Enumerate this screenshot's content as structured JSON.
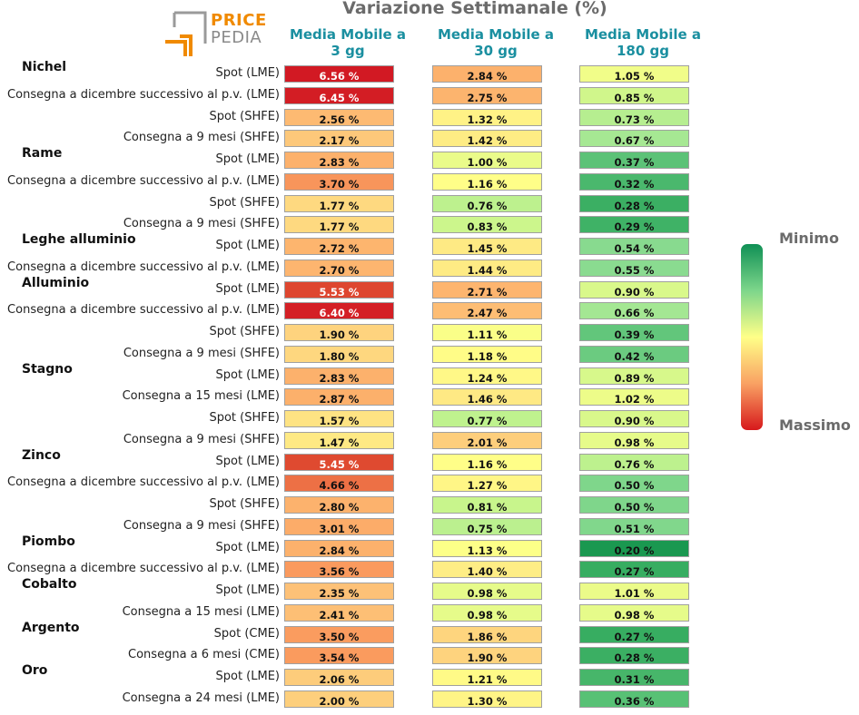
{
  "header": {
    "title": "Variazione Settimanale (%)"
  },
  "logo": {
    "line1": "PRICE",
    "line2": "PEDIA"
  },
  "legend": {
    "min_label": "Minimo",
    "max_label": "Massimo"
  },
  "colors": {
    "header_teal": "#1a8fa0",
    "logo_orange": "#f08a00",
    "logo_gray": "#8a8a8a"
  },
  "chart_data": {
    "type": "table",
    "title": "Variazione Settimanale (%)",
    "unit_suffix": " %",
    "columns": [
      "Media Mobile a\n3 gg",
      "Media Mobile a\n30 gg",
      "Media Mobile a\n180 gg"
    ],
    "colorscale": "RdYlGn (red = Massimo, green = Minimo)",
    "groups": [
      {
        "name": "Nichel",
        "rows": [
          {
            "label": "Spot (LME)",
            "values": [
              6.56,
              2.84,
              1.05
            ]
          },
          {
            "label": "Consegna a dicembre successivo al p.v. (LME)",
            "values": [
              6.45,
              2.75,
              0.85
            ]
          },
          {
            "label": "Spot (SHFE)",
            "values": [
              2.56,
              1.32,
              0.73
            ]
          },
          {
            "label": "Consegna a 9 mesi (SHFE)",
            "values": [
              2.17,
              1.42,
              0.67
            ]
          }
        ]
      },
      {
        "name": "Rame",
        "rows": [
          {
            "label": "Spot (LME)",
            "values": [
              2.83,
              1.0,
              0.37
            ]
          },
          {
            "label": "Consegna a dicembre successivo al p.v. (LME)",
            "values": [
              3.7,
              1.16,
              0.32
            ]
          },
          {
            "label": "Spot (SHFE)",
            "values": [
              1.77,
              0.76,
              0.28
            ]
          },
          {
            "label": "Consegna a 9 mesi (SHFE)",
            "values": [
              1.77,
              0.83,
              0.29
            ]
          }
        ]
      },
      {
        "name": "Leghe alluminio",
        "rows": [
          {
            "label": "Spot (LME)",
            "values": [
              2.72,
              1.45,
              0.54
            ]
          },
          {
            "label": "Consegna a dicembre successivo al p.v. (LME)",
            "values": [
              2.7,
              1.44,
              0.55
            ]
          }
        ]
      },
      {
        "name": "Alluminio",
        "rows": [
          {
            "label": "Spot (LME)",
            "values": [
              5.53,
              2.71,
              0.9
            ]
          },
          {
            "label": "Consegna a dicembre successivo al p.v. (LME)",
            "values": [
              6.4,
              2.47,
              0.66
            ]
          },
          {
            "label": "Spot (SHFE)",
            "values": [
              1.9,
              1.11,
              0.39
            ]
          },
          {
            "label": "Consegna a 9 mesi (SHFE)",
            "values": [
              1.8,
              1.18,
              0.42
            ]
          }
        ]
      },
      {
        "name": "Stagno",
        "rows": [
          {
            "label": "Spot (LME)",
            "values": [
              2.83,
              1.24,
              0.89
            ]
          },
          {
            "label": "Consegna a 15 mesi (LME)",
            "values": [
              2.87,
              1.46,
              1.02
            ]
          },
          {
            "label": "Spot (SHFE)",
            "values": [
              1.57,
              0.77,
              0.9
            ]
          },
          {
            "label": "Consegna a 9 mesi (SHFE)",
            "values": [
              1.47,
              2.01,
              0.98
            ]
          }
        ]
      },
      {
        "name": "Zinco",
        "rows": [
          {
            "label": "Spot (LME)",
            "values": [
              5.45,
              1.16,
              0.76
            ]
          },
          {
            "label": "Consegna a dicembre successivo al p.v. (LME)",
            "values": [
              4.66,
              1.27,
              0.5
            ]
          },
          {
            "label": "Spot (SHFE)",
            "values": [
              2.8,
              0.81,
              0.5
            ]
          },
          {
            "label": "Consegna a 9 mesi (SHFE)",
            "values": [
              3.01,
              0.75,
              0.51
            ]
          }
        ]
      },
      {
        "name": "Piombo",
        "rows": [
          {
            "label": "Spot (LME)",
            "values": [
              2.84,
              1.13,
              0.2
            ]
          },
          {
            "label": "Consegna a dicembre successivo al p.v. (LME)",
            "values": [
              3.56,
              1.4,
              0.27
            ]
          }
        ]
      },
      {
        "name": "Cobalto",
        "rows": [
          {
            "label": "Spot (LME)",
            "values": [
              2.35,
              0.98,
              1.01
            ]
          },
          {
            "label": "Consegna a 15 mesi (LME)",
            "values": [
              2.41,
              0.98,
              0.98
            ]
          }
        ]
      },
      {
        "name": "Argento",
        "rows": [
          {
            "label": "Spot (CME)",
            "values": [
              3.5,
              1.86,
              0.27
            ]
          },
          {
            "label": "Consegna a 6 mesi (CME)",
            "values": [
              3.54,
              1.9,
              0.28
            ]
          }
        ]
      },
      {
        "name": "Oro",
        "rows": [
          {
            "label": "Spot (LME)",
            "values": [
              2.06,
              1.21,
              0.31
            ]
          },
          {
            "label": "Consegna a 24 mesi (LME)",
            "values": [
              2.0,
              1.3,
              0.36
            ]
          }
        ]
      }
    ]
  }
}
